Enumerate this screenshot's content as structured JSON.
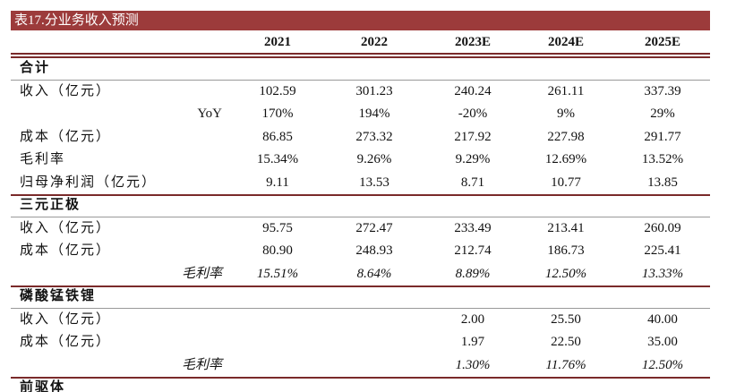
{
  "header": {
    "title": "表17.分业务收入预测"
  },
  "table": {
    "columns": [
      "2021",
      "2022",
      "2023E",
      "2024E",
      "2025E"
    ],
    "sections": [
      {
        "name": "合计",
        "rows": [
          {
            "label": "收入（亿元）",
            "values": [
              "102.59",
              "301.23",
              "240.24",
              "261.11",
              "337.39"
            ]
          },
          {
            "label": "YoY",
            "indent": true,
            "values": [
              "170%",
              "194%",
              "-20%",
              "9%",
              "29%"
            ]
          },
          {
            "label": "成本（亿元）",
            "values": [
              "86.85",
              "273.32",
              "217.92",
              "227.98",
              "291.77"
            ]
          },
          {
            "label": "毛利率",
            "values": [
              "15.34%",
              "9.26%",
              "9.29%",
              "12.69%",
              "13.52%"
            ]
          },
          {
            "label": "归母净利润（亿元）",
            "values": [
              "9.11",
              "13.53",
              "8.71",
              "10.77",
              "13.85"
            ]
          }
        ]
      },
      {
        "name": "三元正极",
        "rows": [
          {
            "label": "收入（亿元）",
            "values": [
              "95.75",
              "272.47",
              "233.49",
              "213.41",
              "260.09"
            ]
          },
          {
            "label": "成本（亿元）",
            "values": [
              "80.90",
              "248.93",
              "212.74",
              "186.73",
              "225.41"
            ]
          },
          {
            "label": "毛利率",
            "indent": true,
            "italic": true,
            "values": [
              "15.51%",
              "8.64%",
              "8.89%",
              "12.50%",
              "13.33%"
            ]
          }
        ]
      },
      {
        "name": "磷酸锰铁锂",
        "rows": [
          {
            "label": "收入（亿元）",
            "values": [
              null,
              null,
              "2.00",
              "25.50",
              "40.00"
            ]
          },
          {
            "label": "成本（亿元）",
            "values": [
              null,
              null,
              "1.97",
              "22.50",
              "35.00"
            ]
          },
          {
            "label": "毛利率",
            "indent": true,
            "italic": true,
            "values": [
              null,
              null,
              "1.30%",
              "11.76%",
              "12.50%"
            ]
          }
        ]
      },
      {
        "name": "前驱体",
        "rows": []
      }
    ]
  }
}
